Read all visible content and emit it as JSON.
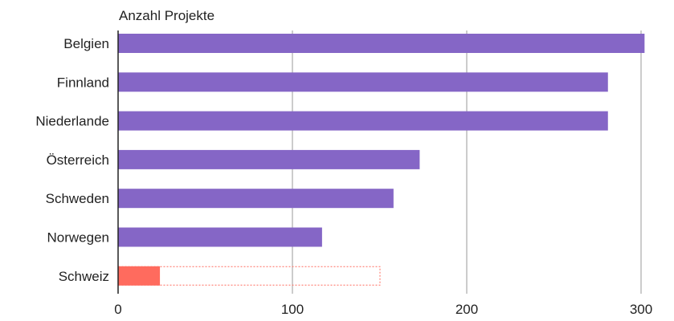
{
  "chart_data": {
    "type": "bar",
    "orientation": "horizontal",
    "title": "",
    "ylabel": "Anzahl Projekte",
    "xlabel": "",
    "categories": [
      "Belgien",
      "Finnland",
      "Niederlande",
      "Österreich",
      "Schweden",
      "Norwegen",
      "Schweiz"
    ],
    "values": [
      302,
      281,
      281,
      173,
      158,
      117,
      24
    ],
    "outlined_target": {
      "category": "Schweiz",
      "value": 150
    },
    "xlim": [
      0,
      300
    ],
    "xticks": [
      0,
      100,
      200,
      300
    ],
    "grid": true,
    "legend": "none",
    "colors": {
      "bar": "#8566c6",
      "highlight": "#ff6b5e",
      "target_outline": "#ff6b5e",
      "grid": "#999999",
      "axis": "#222222"
    }
  }
}
